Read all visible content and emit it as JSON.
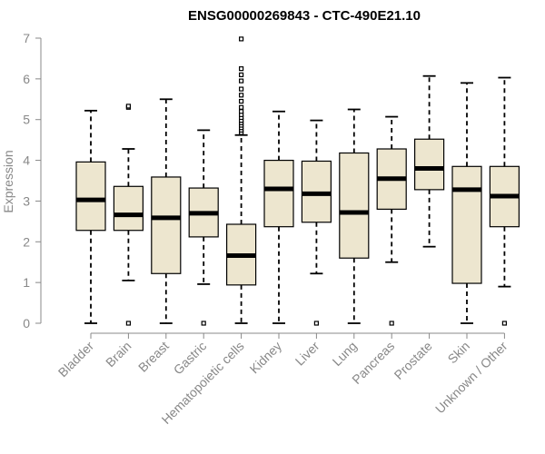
{
  "chart_data": {
    "type": "boxplot",
    "title": "ENSG00000269843 - CTC-490E21.10",
    "xlabel": "",
    "ylabel": "Expression",
    "ylim": [
      0,
      7
    ],
    "yticks": [
      0,
      1,
      2,
      3,
      4,
      5,
      6,
      7
    ],
    "categories": [
      "Bladder",
      "Brain",
      "Breast",
      "Gastric",
      "Hematopoietic cells",
      "Kidney",
      "Liver",
      "Lung",
      "Pancreas",
      "Prostate",
      "Skin",
      "Unknown / Other"
    ],
    "boxes": [
      {
        "min": 0.0,
        "q1": 2.28,
        "median": 3.03,
        "q3": 3.96,
        "max": 5.22,
        "outliers": []
      },
      {
        "min": 1.05,
        "q1": 2.28,
        "median": 2.66,
        "q3": 3.36,
        "max": 4.28,
        "outliers": [
          0.0,
          5.3,
          5.33
        ]
      },
      {
        "min": 0.0,
        "q1": 1.22,
        "median": 2.59,
        "q3": 3.59,
        "max": 5.5,
        "outliers": []
      },
      {
        "min": 0.96,
        "q1": 2.12,
        "median": 2.7,
        "q3": 3.32,
        "max": 4.74,
        "outliers": [
          0.0
        ]
      },
      {
        "min": 0.0,
        "q1": 0.94,
        "median": 1.66,
        "q3": 2.43,
        "max": 4.62,
        "outliers": [
          4.68,
          4.74,
          4.8,
          4.86,
          4.92,
          4.98,
          5.05,
          5.12,
          5.2,
          5.3,
          5.45,
          5.6,
          5.75,
          5.95,
          6.1,
          6.25,
          6.98
        ]
      },
      {
        "min": 0.0,
        "q1": 2.37,
        "median": 3.3,
        "q3": 4.0,
        "max": 5.2,
        "outliers": []
      },
      {
        "min": 1.22,
        "q1": 2.48,
        "median": 3.18,
        "q3": 3.98,
        "max": 4.98,
        "outliers": [
          0.0
        ]
      },
      {
        "min": 0.0,
        "q1": 1.6,
        "median": 2.72,
        "q3": 4.18,
        "max": 5.25,
        "outliers": []
      },
      {
        "min": 1.5,
        "q1": 2.8,
        "median": 3.55,
        "q3": 4.28,
        "max": 5.07,
        "outliers": [
          0.0
        ]
      },
      {
        "min": 1.88,
        "q1": 3.28,
        "median": 3.8,
        "q3": 4.52,
        "max": 6.07,
        "outliers": []
      },
      {
        "min": 0.0,
        "q1": 0.98,
        "median": 3.28,
        "q3": 3.85,
        "max": 5.9,
        "outliers": []
      },
      {
        "min": 0.9,
        "q1": 2.37,
        "median": 3.12,
        "q3": 3.85,
        "max": 6.03,
        "outliers": [
          0.0
        ]
      }
    ]
  }
}
